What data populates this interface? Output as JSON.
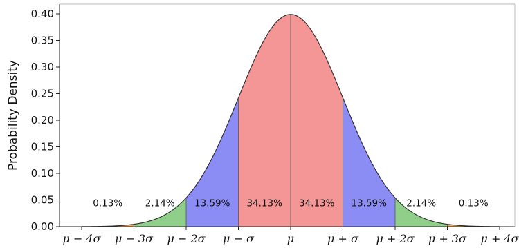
{
  "chart_data": {
    "type": "area",
    "title": "",
    "xlabel": "",
    "ylabel": "Probability Density",
    "xlim": [
      -4,
      4
    ],
    "ylim": [
      0,
      0.4
    ],
    "yticks": [
      "0.00",
      "0.05",
      "0.10",
      "0.15",
      "0.20",
      "0.25",
      "0.30",
      "0.35",
      "0.40"
    ],
    "xticks": [
      {
        "value": -4,
        "label": "μ − 4σ"
      },
      {
        "value": -3,
        "label": "μ − 3σ"
      },
      {
        "value": -2,
        "label": "μ − 2σ"
      },
      {
        "value": -1,
        "label": "μ − σ"
      },
      {
        "value": 0,
        "label": "μ"
      },
      {
        "value": 1,
        "label": "μ + σ"
      },
      {
        "value": 2,
        "label": "μ + 2σ"
      },
      {
        "value": 3,
        "label": "μ + 3σ"
      },
      {
        "value": 4,
        "label": "μ + 4σ"
      }
    ],
    "curve": "standard normal density",
    "regions": [
      {
        "from": -4,
        "to": -3,
        "percent": "0.13%",
        "color": "#f5a64a"
      },
      {
        "from": -3,
        "to": -2,
        "percent": "2.14%",
        "color": "#8fcf8a"
      },
      {
        "from": -2,
        "to": -1,
        "percent": "13.59%",
        "color": "#8c8cf5"
      },
      {
        "from": -1,
        "to": 0,
        "percent": "34.13%",
        "color": "#f59696"
      },
      {
        "from": 0,
        "to": 1,
        "percent": "34.13%",
        "color": "#f59696"
      },
      {
        "from": 1,
        "to": 2,
        "percent": "13.59%",
        "color": "#8c8cf5"
      },
      {
        "from": 2,
        "to": 3,
        "percent": "2.14%",
        "color": "#8fcf8a"
      },
      {
        "from": 3,
        "to": 4,
        "percent": "0.13%",
        "color": "#f5a64a"
      }
    ],
    "label_y": 0.045
  }
}
